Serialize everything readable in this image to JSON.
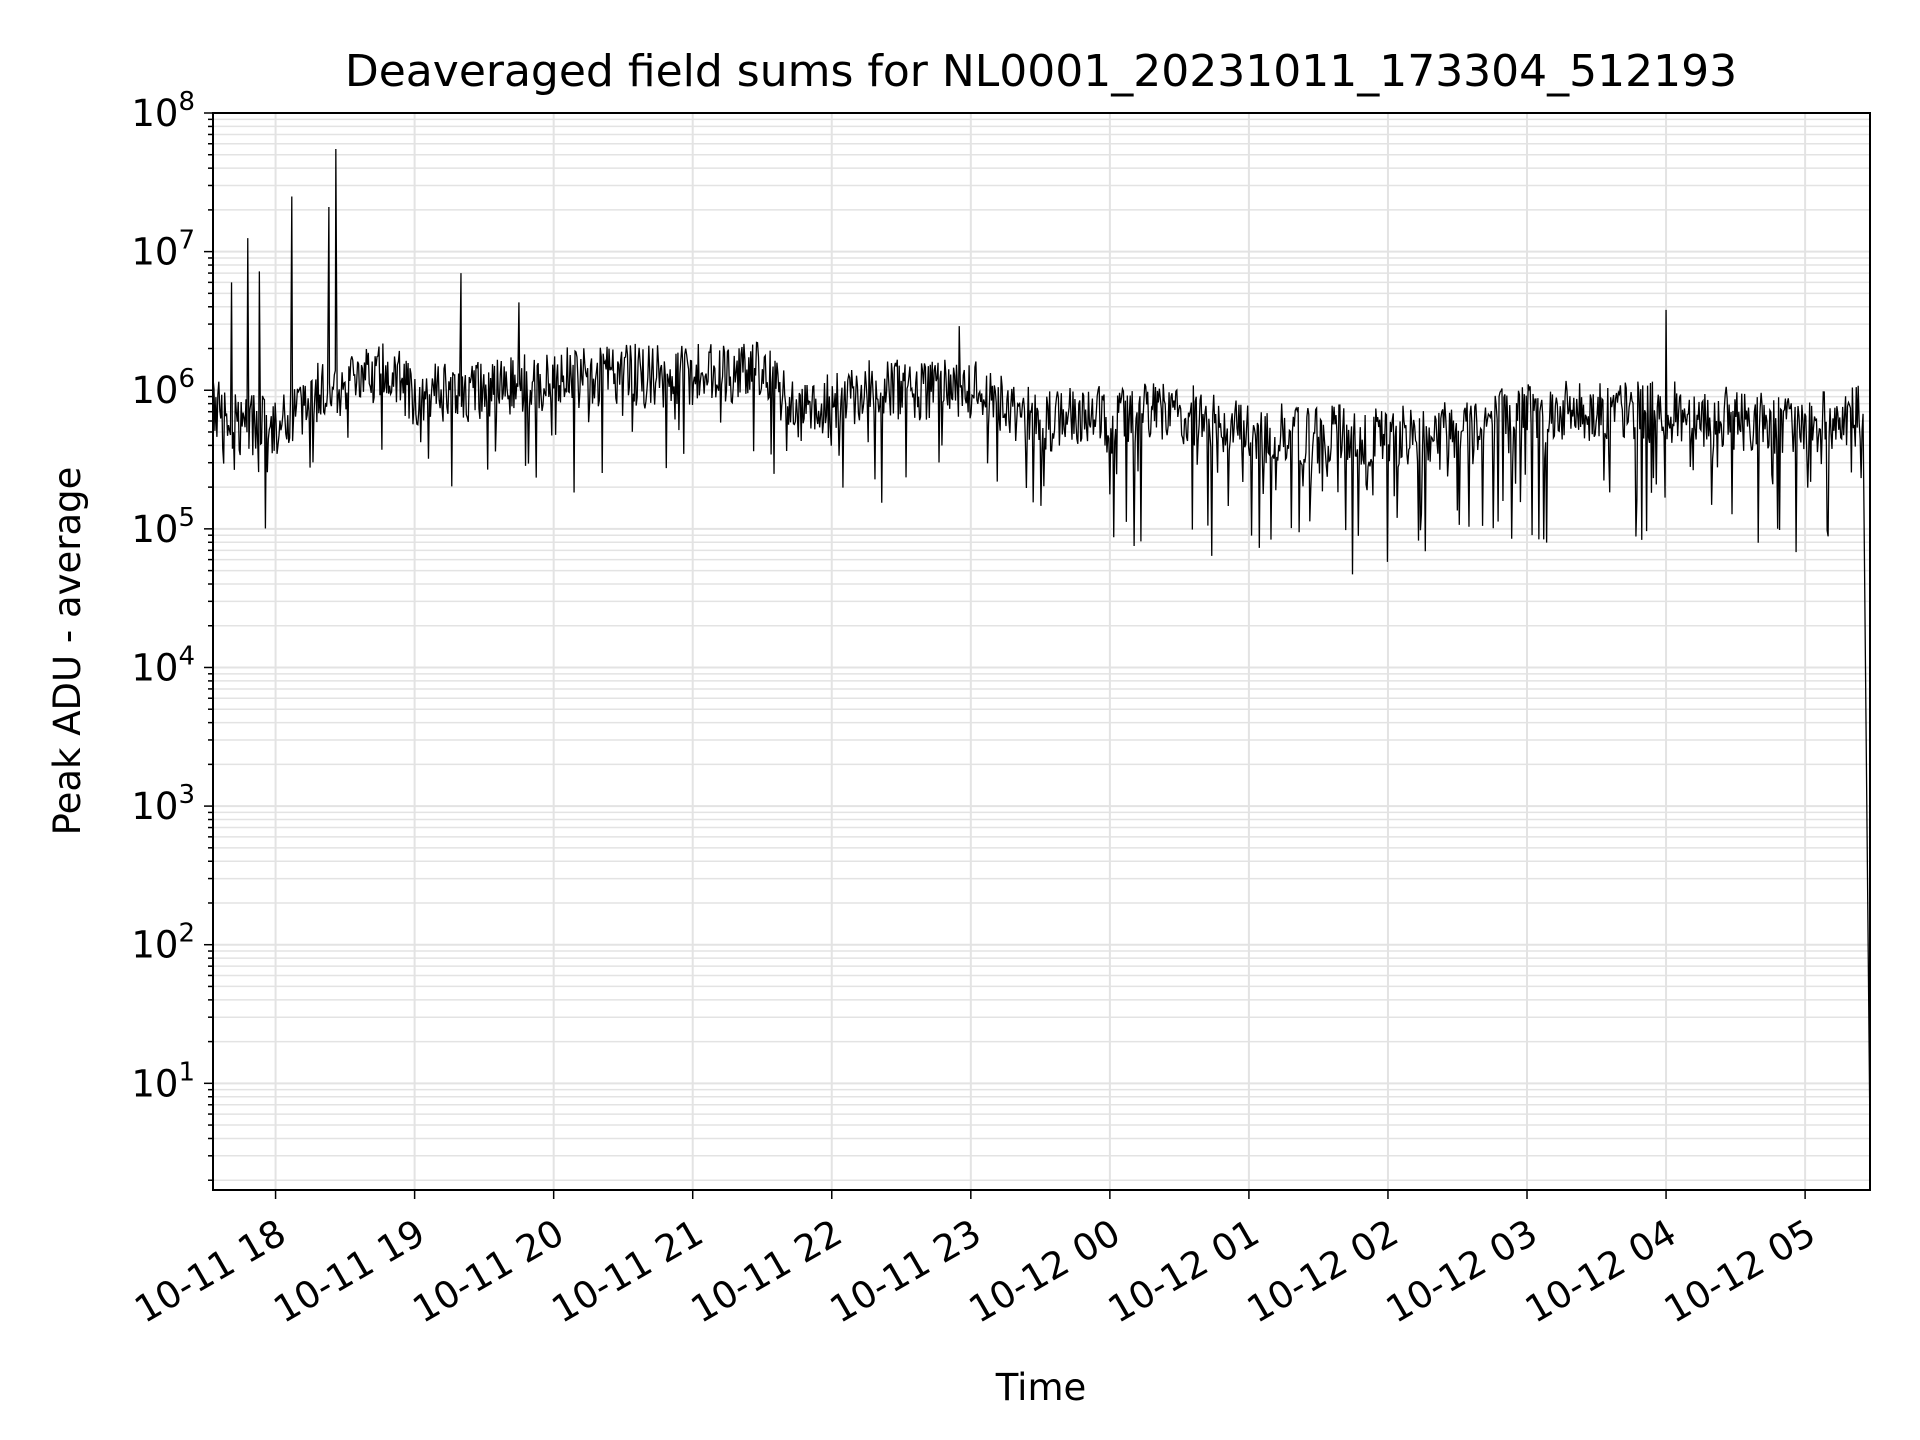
{
  "chart_data": {
    "type": "line",
    "title": "Deaveraged field sums for NL0001_20231011_173304_512193",
    "xlabel": "Time",
    "ylabel": "Peak ADU - average",
    "yscale": "log",
    "ylim": [
      1.7,
      100000000
    ],
    "xlim": [
      "2023-10-11 17:33",
      "2023-10-12 05:28"
    ],
    "grid": true,
    "line_color": "#000000",
    "grid_color": "#e3e3e3",
    "x_ticks": [
      "2023-10-11 18:00",
      "2023-10-11 19:00",
      "2023-10-11 20:00",
      "2023-10-11 21:00",
      "2023-10-11 22:00",
      "2023-10-11 23:00",
      "2023-10-12 00:00",
      "2023-10-12 01:00",
      "2023-10-12 02:00",
      "2023-10-12 03:00",
      "2023-10-12 04:00",
      "2023-10-12 05:00"
    ],
    "x_tick_labels": [
      "10-11 18",
      "10-11 19",
      "10-11 20",
      "10-11 21",
      "10-11 22",
      "10-11 23",
      "10-12 00",
      "10-12 01",
      "10-12 02",
      "10-12 03",
      "10-12 04",
      "10-12 05"
    ],
    "y_ticks": [
      10,
      100,
      1000,
      10000,
      100000,
      1000000,
      10000000,
      100000000
    ],
    "y_tick_labels": [
      {
        "base": "10",
        "exp": "1"
      },
      {
        "base": "10",
        "exp": "2"
      },
      {
        "base": "10",
        "exp": "3"
      },
      {
        "base": "10",
        "exp": "4"
      },
      {
        "base": "10",
        "exp": "5"
      },
      {
        "base": "10",
        "exp": "6"
      },
      {
        "base": "10",
        "exp": "7"
      },
      {
        "base": "10",
        "exp": "8"
      }
    ],
    "baseline": [
      [
        "2023-10-11 17:33",
        800000
      ],
      [
        "2023-10-11 17:45",
        550000
      ],
      [
        "2023-10-11 18:00",
        550000
      ],
      [
        "2023-10-11 18:20",
        1000000
      ],
      [
        "2023-10-11 18:50",
        1400000
      ],
      [
        "2023-10-11 19:00",
        900000
      ],
      [
        "2023-10-11 19:30",
        1000000
      ],
      [
        "2023-10-11 20:00",
        1200000
      ],
      [
        "2023-10-11 20:30",
        1300000
      ],
      [
        "2023-10-11 21:00",
        1300000
      ],
      [
        "2023-10-11 21:30",
        1400000
      ],
      [
        "2023-10-11 21:45",
        700000
      ],
      [
        "2023-10-11 22:15",
        1000000
      ],
      [
        "2023-10-11 23:00",
        1000000
      ],
      [
        "2023-10-11 23:30",
        600000
      ],
      [
        "2023-10-12 00:00",
        650000
      ],
      [
        "2023-10-12 00:30",
        700000
      ],
      [
        "2023-10-12 01:00",
        500000
      ],
      [
        "2023-10-12 02:00",
        450000
      ],
      [
        "2023-10-12 02:30",
        550000
      ],
      [
        "2023-10-12 03:00",
        700000
      ],
      [
        "2023-10-12 04:00",
        700000
      ],
      [
        "2023-10-12 05:00",
        550000
      ],
      [
        "2023-10-12 05:25",
        700000
      ]
    ],
    "spikes": [
      [
        "2023-10-11 17:41",
        6000000
      ],
      [
        "2023-10-11 17:48",
        12500000
      ],
      [
        "2023-10-11 17:53",
        7200000
      ],
      [
        "2023-10-11 18:07",
        25000000
      ],
      [
        "2023-10-11 18:23",
        21000000
      ],
      [
        "2023-10-11 18:26",
        55000000
      ],
      [
        "2023-10-11 19:20",
        7000000
      ],
      [
        "2023-10-11 19:45",
        4300000
      ],
      [
        "2023-10-11 22:55",
        2900000
      ],
      [
        "2023-10-12 04:00",
        3800000
      ]
    ],
    "final_drop": [
      "2023-10-12 05:28",
      4
    ]
  }
}
